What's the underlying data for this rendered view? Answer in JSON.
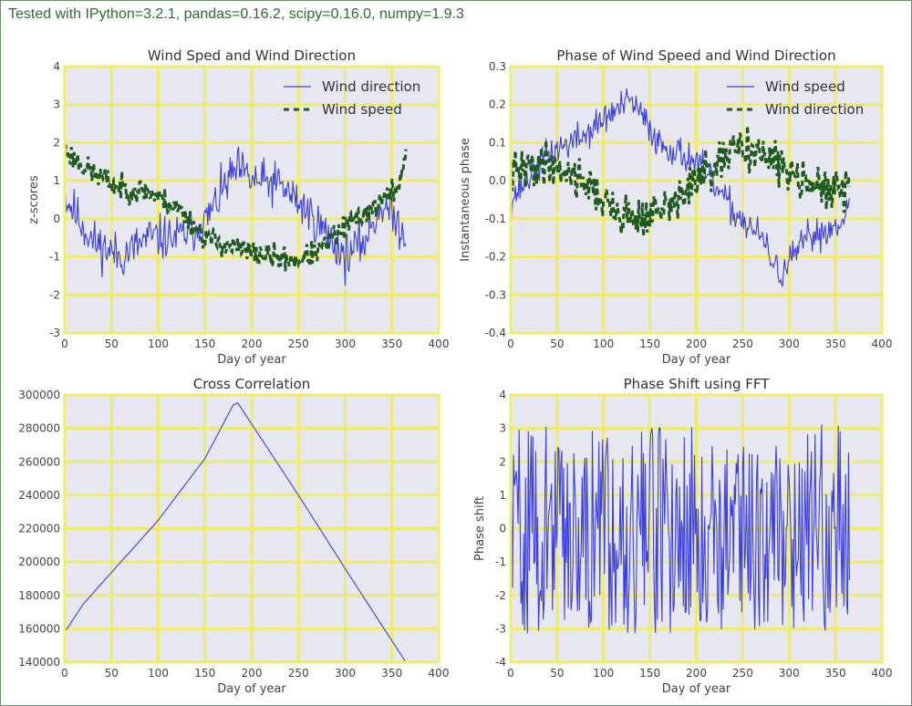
{
  "header": {
    "text": "Tested with IPython=3.2.1, pandas=0.16.2, scipy=0.16.0, numpy=1.9.3"
  },
  "colors": {
    "blue": "#3b3fe0",
    "green": "#1f5a1f",
    "plot_bg": "#e7e7f2",
    "grid": "#f0ec6a",
    "text": "#2e6b2e"
  },
  "chart_data": [
    {
      "type": "line",
      "title": "Wind Sped and Wind Direction",
      "xlabel": "Day of year",
      "ylabel": "z-scores",
      "xlim": [
        0,
        400
      ],
      "ylim": [
        -3,
        4
      ],
      "xticks": [
        0,
        50,
        100,
        150,
        200,
        250,
        300,
        350,
        400
      ],
      "yticks": [
        -3,
        -2,
        -1,
        0,
        1,
        2,
        3,
        4
      ],
      "grid": true,
      "legend_placement": "top-right",
      "series": [
        {
          "name": "Wind direction",
          "style": "solid",
          "color": "#3b3fe0",
          "noise": 0.55,
          "seed": 11,
          "x": [
            0,
            30,
            60,
            90,
            120,
            150,
            175,
            185,
            200,
            230,
            260,
            290,
            300,
            320,
            340,
            365
          ],
          "y": [
            0.6,
            -0.6,
            -1.0,
            -0.5,
            -0.5,
            -0.1,
            1.0,
            1.3,
            1.0,
            0.9,
            0.2,
            -0.7,
            -1.0,
            -0.6,
            0.4,
            -0.4
          ]
        },
        {
          "name": "Wind speed",
          "style": "dashed",
          "color": "#1f5a1f",
          "noise": 0.3,
          "seed": 23,
          "x": [
            0,
            30,
            60,
            90,
            120,
            150,
            200,
            250,
            275,
            300,
            330,
            355,
            365
          ],
          "y": [
            1.8,
            1.2,
            0.8,
            0.7,
            0.3,
            -0.5,
            -0.9,
            -1.1,
            -0.8,
            -0.2,
            0.3,
            0.8,
            1.6
          ]
        }
      ]
    },
    {
      "type": "line",
      "title": "Phase of Wind Speed and Wind Direction",
      "xlabel": "Day of year",
      "ylabel": "Instantaneous phase",
      "xlim": [
        0,
        400
      ],
      "ylim": [
        -0.4,
        0.3
      ],
      "xticks": [
        0,
        50,
        100,
        150,
        200,
        250,
        300,
        350,
        400
      ],
      "yticks": [
        -0.4,
        -0.3,
        -0.2,
        -0.1,
        0.0,
        0.1,
        0.2,
        0.3
      ],
      "grid": true,
      "legend_placement": "top-right",
      "series": [
        {
          "name": "Wind speed",
          "style": "solid",
          "color": "#3b3fe0",
          "noise": 0.04,
          "seed": 37,
          "x": [
            0,
            40,
            80,
            110,
            130,
            160,
            200,
            240,
            270,
            290,
            320,
            350,
            365
          ],
          "y": [
            -0.05,
            0.07,
            0.12,
            0.18,
            0.21,
            0.1,
            0.05,
            -0.08,
            -0.15,
            -0.25,
            -0.15,
            -0.12,
            -0.06
          ]
        },
        {
          "name": "Wind direction",
          "style": "dashed",
          "color": "#1f5a1f",
          "noise": 0.05,
          "seed": 41,
          "x": [
            0,
            40,
            80,
            110,
            140,
            170,
            200,
            230,
            250,
            280,
            310,
            340,
            365
          ],
          "y": [
            0.02,
            0.05,
            0.0,
            -0.08,
            -0.1,
            -0.07,
            0.0,
            0.05,
            0.1,
            0.05,
            0.02,
            -0.03,
            -0.02
          ]
        }
      ]
    },
    {
      "type": "line",
      "title": "Cross Correlation",
      "xlabel": "Day of year",
      "ylabel": "",
      "xlim": [
        0,
        400
      ],
      "ylim": [
        140000,
        300000
      ],
      "xticks": [
        0,
        50,
        100,
        150,
        200,
        250,
        300,
        350,
        400
      ],
      "yticks": [
        140000,
        160000,
        180000,
        200000,
        220000,
        240000,
        260000,
        280000,
        300000
      ],
      "grid": true,
      "series": [
        {
          "style": "solid",
          "color": "#3b3fe0",
          "noise": 0,
          "seed": 1,
          "x": [
            0,
            20,
            60,
            100,
            150,
            183,
            250,
            300,
            330,
            365
          ],
          "y": [
            158000,
            175000,
            200000,
            225000,
            262000,
            297000,
            240000,
            196000,
            170000,
            140000
          ]
        }
      ]
    },
    {
      "type": "line",
      "title": "Phase Shift using FFT",
      "xlabel": "Day of year",
      "ylabel": "Phase shift",
      "xlim": [
        0,
        400
      ],
      "ylim": [
        -4,
        4
      ],
      "xticks": [
        0,
        50,
        100,
        150,
        200,
        250,
        300,
        350,
        400
      ],
      "yticks": [
        -4,
        -3,
        -2,
        -1,
        0,
        1,
        2,
        3,
        4
      ],
      "grid": true,
      "series": [
        {
          "style": "solid",
          "color": "#3b3fe0",
          "random_range": [
            -3.14,
            3.14
          ],
          "seed": 59,
          "x": [
            0,
            365
          ],
          "y": [
            0,
            0
          ]
        }
      ]
    }
  ]
}
